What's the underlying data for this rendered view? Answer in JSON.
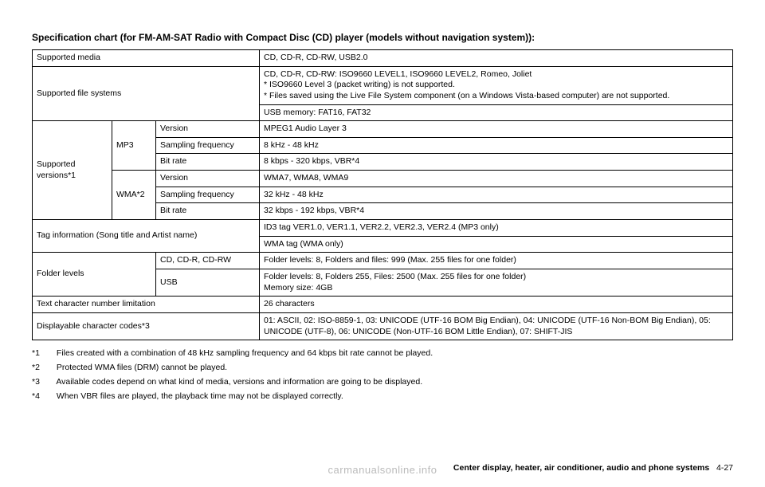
{
  "title": "Specification chart (for FM-AM-SAT Radio with Compact Disc (CD) player (models without navigation system)):",
  "rows": {
    "supported_media_label": "Supported media",
    "supported_media_value": "CD, CD-R, CD-RW, USB2.0",
    "supported_fs_label": "Supported file systems",
    "supported_fs_value1": "CD, CD-R, CD-RW: ISO9660 LEVEL1, ISO9660 LEVEL2, Romeo, Joliet\n* ISO9660 Level 3 (packet writing) is not supported.\n* Files saved using the Live File System component (on a Windows Vista-based computer) are not supported.",
    "supported_fs_value2": "USB memory: FAT16, FAT32",
    "supported_versions_label": "Supported versions*1",
    "mp3_label": "MP3",
    "mp3_version_label": "Version",
    "mp3_version_value": "MPEG1 Audio Layer 3",
    "mp3_sf_label": "Sampling frequency",
    "mp3_sf_value": "8 kHz - 48 kHz",
    "mp3_br_label": "Bit rate",
    "mp3_br_value": "8 kbps - 320 kbps, VBR*4",
    "wma_label": "WMA*2",
    "wma_version_label": "Version",
    "wma_version_value": "WMA7, WMA8, WMA9",
    "wma_sf_label": "Sampling frequency",
    "wma_sf_value": "32 kHz - 48 kHz",
    "wma_br_label": "Bit rate",
    "wma_br_value": "32 kbps - 192 kbps, VBR*4",
    "tag_label": "Tag information (Song title and Artist name)",
    "tag_value1": "ID3 tag VER1.0, VER1.1, VER2.2, VER2.3, VER2.4 (MP3 only)",
    "tag_value2": "WMA tag (WMA only)",
    "folder_label": "Folder levels",
    "folder_cd_label": "CD, CD-R, CD-RW",
    "folder_cd_value": "Folder levels: 8, Folders and files: 999 (Max. 255 files for one folder)",
    "folder_usb_label": "USB",
    "folder_usb_value": "Folder levels: 8, Folders 255, Files: 2500 (Max. 255 files for one folder)\nMemory size: 4GB",
    "text_limit_label": "Text character number limitation",
    "text_limit_value": "26 characters",
    "disp_codes_label": "Displayable character codes*3",
    "disp_codes_value": "01: ASCII, 02: ISO-8859-1, 03: UNICODE (UTF-16 BOM Big Endian), 04: UNICODE (UTF-16 Non-BOM Big Endian), 05: UNICODE (UTF-8), 06: UNICODE (Non-UTF-16 BOM Little Endian), 07: SHIFT-JIS"
  },
  "footnotes": {
    "n1_label": "*1",
    "n1_text": "Files created with a combination of 48 kHz sampling frequency and 64 kbps bit rate cannot be played.",
    "n2_label": "*2",
    "n2_text": "Protected WMA files (DRM) cannot be played.",
    "n3_label": "*3",
    "n3_text": "Available codes depend on what kind of media, versions and information are going to be displayed.",
    "n4_label": "*4",
    "n4_text": "When VBR files are played, the playback time may not be displayed correctly."
  },
  "footer": {
    "section": "Center display, heater, air conditioner, audio and phone systems",
    "page": "4-27"
  },
  "watermark": "carmanualsonline.info",
  "colors": {
    "text": "#000000",
    "border": "#000000",
    "background": "#ffffff",
    "watermark": "#bbbbbb"
  },
  "font_sizes": {
    "title": 12,
    "cell": 10.5,
    "footnote": 10.5,
    "footer": 10.5
  }
}
